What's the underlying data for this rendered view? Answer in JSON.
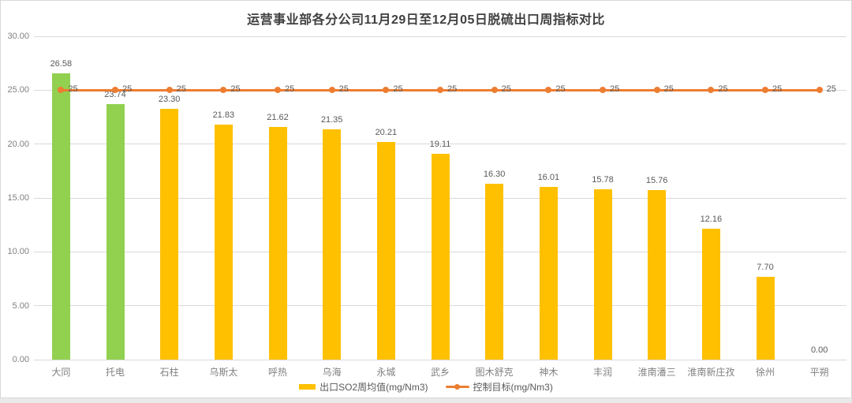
{
  "chart_data": {
    "type": "bar",
    "title": "运营事业部各分公司11月29日至12月05日脱硫出口周指标对比",
    "categories": [
      "大同",
      "托电",
      "石柱",
      "乌斯太",
      "呼热",
      "乌海",
      "永城",
      "武乡",
      "图木舒克",
      "神木",
      "丰润",
      "淮南潘三",
      "淮南新庄孜",
      "徐州",
      "平朔"
    ],
    "series": [
      {
        "name": "出口SO2周均值(mg/Nm3)",
        "type": "bar",
        "values": [
          26.58,
          23.74,
          23.3,
          21.83,
          21.62,
          21.35,
          20.21,
          19.11,
          16.3,
          16.01,
          15.78,
          15.76,
          12.16,
          7.7,
          0.0
        ],
        "value_labels": [
          "26.58",
          "23.74",
          "23.30",
          "21.83",
          "21.62",
          "21.35",
          "20.21",
          "19.11",
          "16.30",
          "16.01",
          "15.78",
          "15.76",
          "12.16",
          "7.70",
          "0.00"
        ],
        "color": "#FFC000",
        "highlight_color": "#92D050",
        "highlight_indices": [
          0,
          1
        ]
      },
      {
        "name": "控制目标(mg/Nm3)",
        "type": "line",
        "value": 25,
        "values": [
          25,
          25,
          25,
          25,
          25,
          25,
          25,
          25,
          25,
          25,
          25,
          25,
          25,
          25,
          25
        ],
        "point_label": "25",
        "color": "#ED7D31"
      }
    ],
    "ylim": [
      0,
      30
    ],
    "ytick_values": [
      0,
      5,
      10,
      15,
      20,
      25,
      30
    ],
    "ytick_labels": [
      "0.00",
      "5.00",
      "10.00",
      "15.00",
      "20.00",
      "25.00",
      "30.00"
    ],
    "grid": true,
    "legend_position": "bottom"
  },
  "colors": {
    "page_background": "#E9E9E9",
    "chart_background": "#FFFFFF",
    "chart_border": "#D8D8D8",
    "gridline": "#D9D9D9",
    "title_text": "#404040",
    "axis_text": "#808080",
    "data_label_text": "#595959",
    "bar_default": "#FFC000",
    "bar_highlight": "#92D050",
    "target_line": "#ED7D31"
  }
}
